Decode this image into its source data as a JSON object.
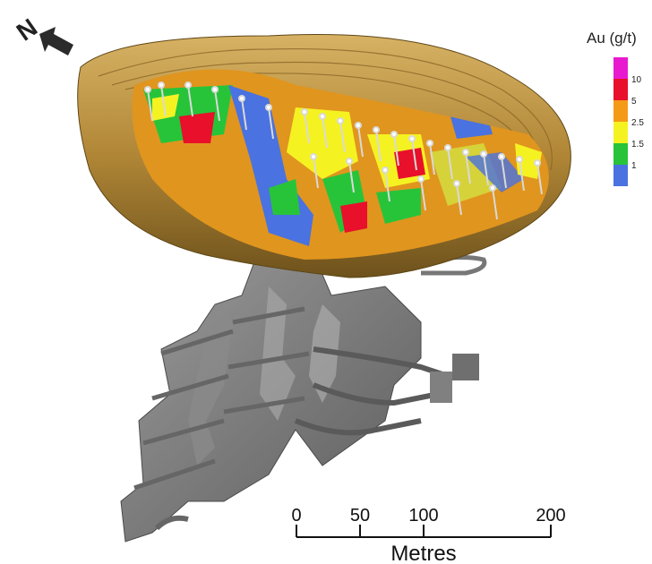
{
  "north_arrow": {
    "label": "N"
  },
  "legend": {
    "title": "Au (g/t)",
    "ticks": [
      {
        "label": "10",
        "color": "#e8102b"
      },
      {
        "label": "5",
        "color": "#f59a16"
      },
      {
        "label": "2.5",
        "color": "#f5f222"
      },
      {
        "label": "1.5",
        "color": "#27c43a"
      },
      {
        "label": "1",
        "color": "#4a72e0"
      }
    ],
    "top_color": "#e81ad0"
  },
  "scale_bar": {
    "unit": "Metres",
    "ticks": [
      "0",
      "50",
      "100",
      "200"
    ],
    "tick_values": [
      0,
      50,
      100,
      200
    ]
  },
  "colors": {
    "pit_wall": "#b48a3c",
    "pit_wall_dark": "#7e5d22",
    "underground": "#7d7d7d",
    "drillhole": "#d9d9d9"
  }
}
